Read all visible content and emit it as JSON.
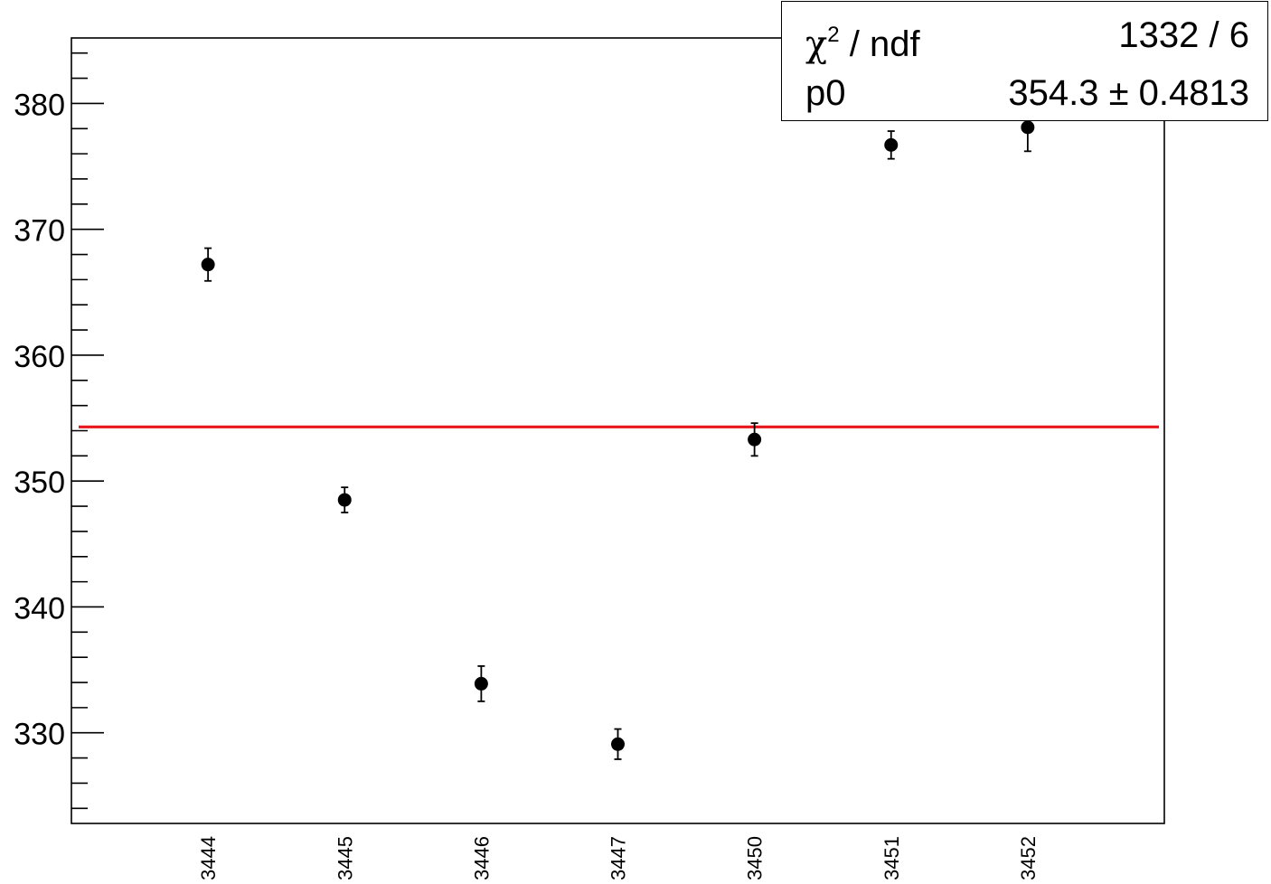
{
  "chart_data": {
    "type": "scatter",
    "categories": [
      "3444",
      "3445",
      "3446",
      "3447",
      "3450",
      "3451",
      "3452"
    ],
    "points": [
      {
        "x": "3444",
        "y": 367.2,
        "err": 1.3
      },
      {
        "x": "3445",
        "y": 348.5,
        "err": 1.0
      },
      {
        "x": "3446",
        "y": 333.9,
        "err": 1.4
      },
      {
        "x": "3447",
        "y": 329.1,
        "err": 1.2
      },
      {
        "x": "3450",
        "y": 353.3,
        "err": 1.3
      },
      {
        "x": "3451",
        "y": 376.7,
        "err": 1.1
      },
      {
        "x": "3452",
        "y": 378.1,
        "err": 1.9
      }
    ],
    "ylim": [
      322.8,
      385.2
    ],
    "yticks": [
      "330",
      "340",
      "350",
      "360",
      "370",
      "380"
    ],
    "fit": {
      "value": 354.3,
      "color": "#e8161c"
    },
    "stats": {
      "chi2_symbol": "χ",
      "chi2_sup": "2",
      "chi2_rest": " / ndf",
      "chi2_value": "1332 / 6",
      "p0_label": "p0",
      "p0_value": "354.3 ± 0.4813"
    },
    "marker_color": "#000000",
    "title": "",
    "xlabel": "",
    "ylabel": ""
  }
}
